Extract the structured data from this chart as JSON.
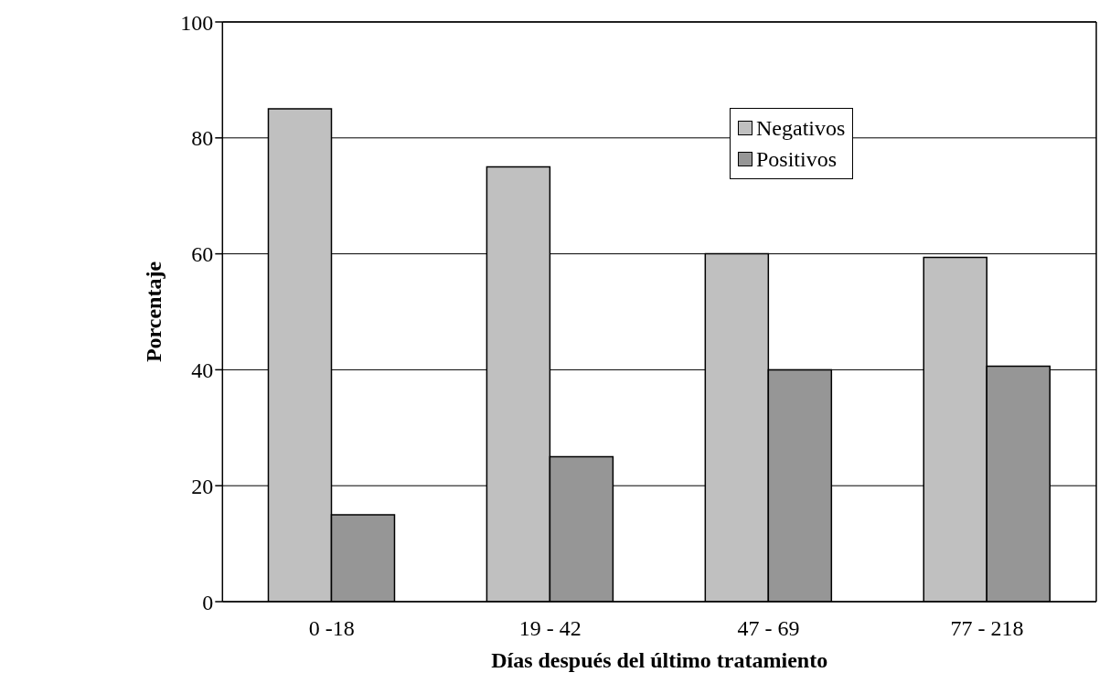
{
  "chart_data": {
    "type": "bar",
    "xlabel": "Días después del último tratamiento",
    "ylabel": "Porcentaje",
    "categories": [
      "0 -18",
      "19 - 42",
      "47 - 69",
      "77 - 218"
    ],
    "series": [
      {
        "name": "Negativos",
        "color": "#c0c0c0",
        "values": [
          85,
          75,
          60,
          59.4
        ]
      },
      {
        "name": "Positivos",
        "color": "#969696",
        "values": [
          15,
          25,
          40,
          40.6
        ]
      }
    ],
    "ylim": [
      0,
      100
    ],
    "yticks": [
      0,
      20,
      40,
      60,
      80,
      100
    ],
    "grid": "y",
    "legend": "top right"
  }
}
